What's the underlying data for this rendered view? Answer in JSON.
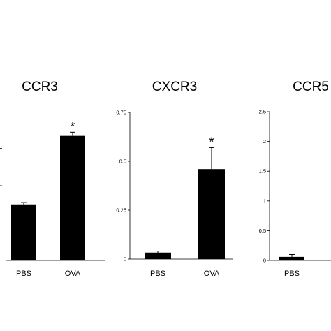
{
  "chart_data": [
    {
      "type": "bar",
      "title": "CCR3",
      "categories": [
        "PBS",
        "OVA"
      ],
      "values": [
        0.45,
        1.0
      ],
      "errors": [
        0.015,
        0.03
      ],
      "significance": [
        "",
        "*"
      ],
      "ylim": [
        0,
        1.2
      ],
      "yticks": [],
      "ytick_labels": [],
      "bar_color": "#000000"
    },
    {
      "type": "bar",
      "title": "CXCR3",
      "categories": [
        "PBS",
        "OVA"
      ],
      "values": [
        0.033,
        0.46
      ],
      "errors": [
        0.008,
        0.11
      ],
      "significance": [
        "",
        "*"
      ],
      "ylim": [
        0,
        0.75
      ],
      "yticks": [
        0,
        0.25,
        0.5,
        0.75
      ],
      "ytick_labels": [
        "0",
        "0.25",
        "0.5",
        "0.75"
      ],
      "bar_color": "#000000"
    },
    {
      "type": "bar",
      "title": "CCR5",
      "categories": [
        "PBS",
        ""
      ],
      "values": [
        0.06,
        null
      ],
      "errors": [
        0.04,
        null
      ],
      "significance": [
        "",
        ""
      ],
      "ylim": [
        0,
        2.5
      ],
      "yticks": [
        0,
        0.5,
        1,
        1.5,
        2,
        2.5
      ],
      "ytick_labels": [
        "0",
        "0.5",
        "1",
        "1.5",
        "2",
        "2.5"
      ],
      "bar_color": "#000000"
    }
  ]
}
